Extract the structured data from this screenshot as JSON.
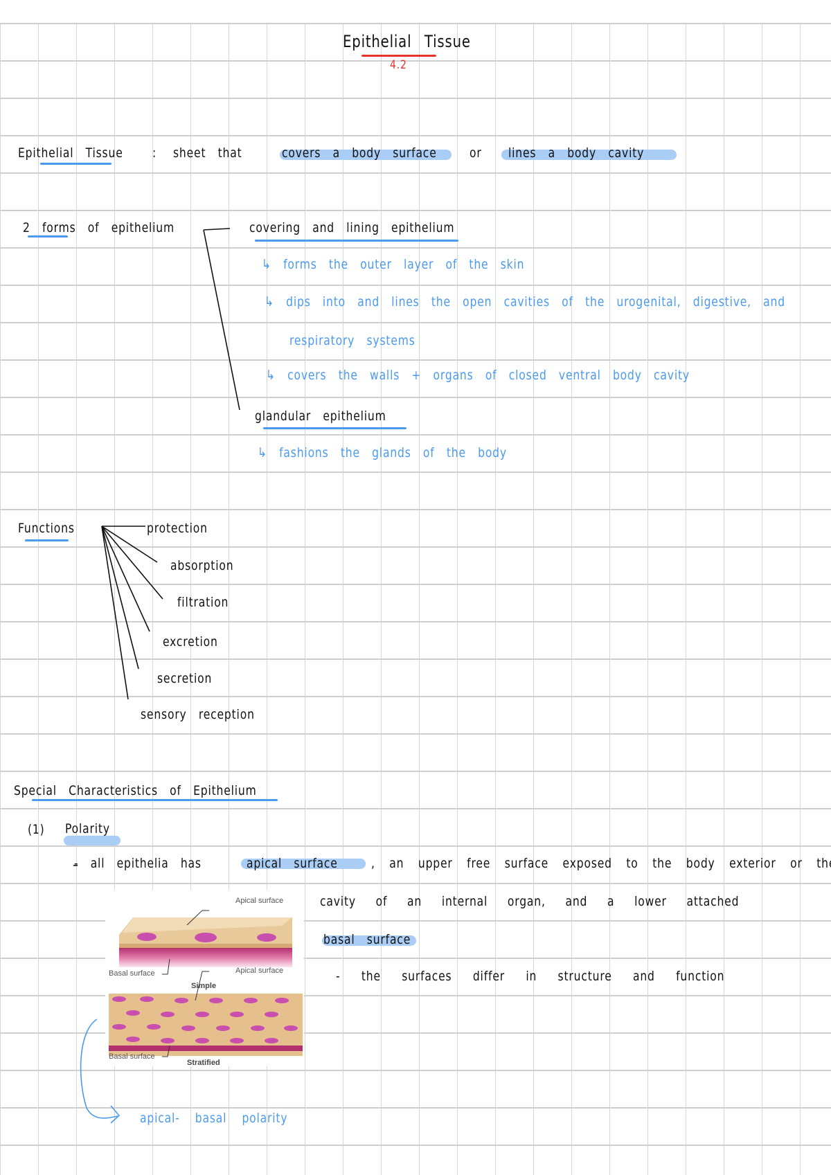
{
  "title": {
    "text": "Epithelial Tissue",
    "section": "4.2"
  },
  "definition": {
    "term": "Epithelial Tissue",
    "colon": ":",
    "plain": "sheet that",
    "highlight1": "covers a body surface",
    "or": "or",
    "highlight2": "lines a body cavity"
  },
  "forms": {
    "label": "2 forms of epithelium",
    "covering": {
      "heading": "covering and lining epithelium",
      "points": [
        "↳ forms the outer layer of the skin",
        "↳ dips into and lines the open cavities of the urogenital, digestive, and",
        "respiratory systems",
        "↳ covers the walls + organs of closed ventral body cavity"
      ]
    },
    "glandular": {
      "heading": "glandular epithelium",
      "points": [
        "↳ fashions the glands of the body"
      ]
    }
  },
  "functions": {
    "label": "Functions",
    "items": [
      "protection",
      "absorption",
      "filtration",
      "excretion",
      "secretion",
      "sensory reception"
    ]
  },
  "special": {
    "heading": "Special Characteristics of Epithelium",
    "polarity": {
      "number": "(1)",
      "label": "Polarity",
      "line1_pre": "- all epithelia has",
      "line1_hl": "apical surface",
      "line1_post": ", an upper free surface exposed to the body exterior or the",
      "line2": "cavity of an internal organ, and a lower attached",
      "line3_hl": "basal surface",
      "line4": "- the surfaces differ in structure and function",
      "note": "apical- basal polarity"
    },
    "figure": {
      "apical_label": "Apical surface",
      "basal_label": "Basal surface",
      "simple": "Simple",
      "stratified": "Stratified"
    }
  },
  "colors": {
    "ink": "#111111",
    "blue_ink": "#4a9af0",
    "highlight": "#a9cdf5",
    "red": "#e8332c"
  }
}
